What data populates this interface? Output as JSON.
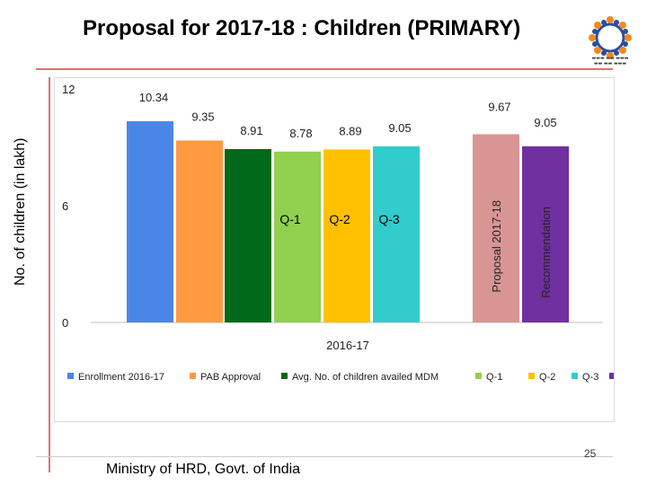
{
  "header": {
    "title": "Proposal for 2017-18 : Children (PRIMARY)"
  },
  "footer": {
    "ministry": "Ministry of HRD, Govt. of India",
    "page_number": "25"
  },
  "chart_data": {
    "type": "bar",
    "title": "Proposal for 2017-18 : Children (PRIMARY)",
    "ylabel": "No. of children (in lakh)",
    "xlabel": "2016-17",
    "ylim": [
      0,
      12
    ],
    "yticks": [
      "0",
      "6",
      "12"
    ],
    "series": [
      {
        "name": "Enrollment 2016-17",
        "value": 10.34,
        "label": "10.34",
        "inner_label": "",
        "color": "#4a86e8"
      },
      {
        "name": "PAB Approval",
        "value": 9.35,
        "label": "9.35",
        "inner_label": "",
        "color": "#ff9a40"
      },
      {
        "name": "Avg. No. of children availed  MDM",
        "value": 8.91,
        "label": "8.91",
        "inner_label": "",
        "color": "#006a1a"
      },
      {
        "name": "Q-1",
        "value": 8.78,
        "label": "8.78",
        "inner_label": "Q-1",
        "color": "#92d050"
      },
      {
        "name": "Q-2",
        "value": 8.89,
        "label": "8.89",
        "inner_label": "Q-2",
        "color": "#ffc000"
      },
      {
        "name": "Q-3",
        "value": 9.05,
        "label": "9.05",
        "inner_label": "Q-3",
        "color": "#33cccc"
      },
      {
        "name": "Proposal 2017-18",
        "value": 9.67,
        "label": "9.67",
        "inner_label": "Proposal 2017-18",
        "color": "#d99594"
      },
      {
        "name": "Recommendation",
        "value": 9.05,
        "label": "9.05",
        "inner_label": "Recommendation",
        "color": "#7030a0"
      }
    ],
    "legend": [
      {
        "name": "Enrollment 2016-17",
        "color": "#4a86e8"
      },
      {
        "name": "PAB Approval",
        "color": "#ff9a40"
      },
      {
        "name": "Avg. No. of children availed  MDM",
        "color": "#006a1a"
      },
      {
        "name": "Q-1",
        "color": "#92d050"
      },
      {
        "name": "Q-2",
        "color": "#ffc000"
      },
      {
        "name": "Q-3",
        "color": "#33cccc"
      },
      {
        "name": "",
        "color": "#7030a0"
      }
    ],
    "legend_position": "bottom"
  }
}
